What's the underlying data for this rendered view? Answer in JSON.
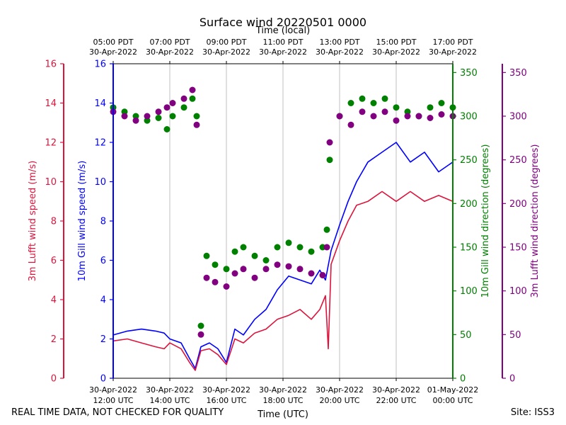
{
  "chart_data": {
    "type": "line",
    "title": "Surface wind 20220501 0000",
    "top_axis_label": "Time (local)",
    "xlabel": "Time (UTC)",
    "xlim_hours_utc": [
      12,
      24
    ],
    "bottom_ticks": [
      {
        "hour": 12,
        "line1": "30-Apr-2022",
        "line2": "12:00 UTC"
      },
      {
        "hour": 14,
        "line1": "30-Apr-2022",
        "line2": "14:00 UTC"
      },
      {
        "hour": 16,
        "line1": "30-Apr-2022",
        "line2": "16:00 UTC"
      },
      {
        "hour": 18,
        "line1": "30-Apr-2022",
        "line2": "18:00 UTC"
      },
      {
        "hour": 20,
        "line1": "30-Apr-2022",
        "line2": "20:00 UTC"
      },
      {
        "hour": 22,
        "line1": "30-Apr-2022",
        "line2": "22:00 UTC"
      },
      {
        "hour": 24,
        "line1": "01-May-2022",
        "line2": "00:00 UTC"
      }
    ],
    "top_ticks": [
      {
        "hour": 12,
        "line1": "05:00 PDT",
        "line2": "30-Apr-2022"
      },
      {
        "hour": 14,
        "line1": "07:00 PDT",
        "line2": "30-Apr-2022"
      },
      {
        "hour": 16,
        "line1": "09:00 PDT",
        "line2": "30-Apr-2022"
      },
      {
        "hour": 18,
        "line1": "11:00 PDT",
        "line2": "30-Apr-2022"
      },
      {
        "hour": 20,
        "line1": "13:00 PDT",
        "line2": "30-Apr-2022"
      },
      {
        "hour": 22,
        "line1": "15:00 PDT",
        "line2": "30-Apr-2022"
      },
      {
        "hour": 24,
        "line1": "17:00 PDT",
        "line2": "30-Apr-2022"
      }
    ],
    "axes": [
      {
        "name": "3m Lufft wind speed (m/s)",
        "color": "#dc143c",
        "ylim": [
          0,
          16
        ],
        "ticks": [
          0,
          2,
          4,
          6,
          8,
          10,
          12,
          14,
          16
        ]
      },
      {
        "name": "10m Gill wind speed (m/s)",
        "color": "#0000ff",
        "ylim": [
          0,
          16
        ],
        "ticks": [
          0,
          2,
          4,
          6,
          8,
          10,
          12,
          14,
          16
        ]
      },
      {
        "name": "10m Gill wind direction (degrees)",
        "color": "#008000",
        "ylim": [
          0,
          360
        ],
        "ticks": [
          0,
          50,
          100,
          150,
          200,
          250,
          300,
          350
        ]
      },
      {
        "name": "3m Lufft wind direction (degrees)",
        "color": "#800080",
        "ylim": [
          0,
          360
        ],
        "ticks": [
          0,
          50,
          100,
          150,
          200,
          250,
          300,
          350
        ]
      }
    ],
    "series": [
      {
        "name": "10m Gill wind speed",
        "kind": "line",
        "axis": 1,
        "color": "#0000ff",
        "x": [
          12.0,
          12.5,
          13.0,
          13.5,
          13.8,
          14.0,
          14.4,
          14.7,
          14.9,
          15.1,
          15.4,
          15.7,
          16.0,
          16.3,
          16.6,
          17.0,
          17.4,
          17.8,
          18.2,
          18.6,
          19.0,
          19.3,
          19.5,
          19.7,
          20.0,
          20.3,
          20.6,
          21.0,
          21.5,
          22.0,
          22.5,
          23.0,
          23.5,
          24.0
        ],
        "y": [
          2.2,
          2.4,
          2.5,
          2.4,
          2.3,
          2.0,
          1.8,
          1.0,
          0.5,
          1.6,
          1.8,
          1.5,
          0.8,
          2.5,
          2.2,
          3.0,
          3.5,
          4.5,
          5.2,
          5.0,
          4.8,
          5.5,
          5.0,
          6.5,
          7.8,
          9.0,
          10.0,
          11.0,
          11.5,
          12.0,
          11.0,
          11.5,
          10.5,
          11.0
        ]
      },
      {
        "name": "3m Lufft wind speed",
        "kind": "line",
        "axis": 0,
        "color": "#dc143c",
        "x": [
          12.0,
          12.5,
          13.0,
          13.5,
          13.8,
          14.0,
          14.4,
          14.7,
          14.9,
          15.1,
          15.4,
          15.7,
          16.0,
          16.3,
          16.6,
          17.0,
          17.4,
          17.8,
          18.2,
          18.6,
          19.0,
          19.3,
          19.5,
          19.6,
          19.7,
          20.0,
          20.3,
          20.6,
          21.0,
          21.5,
          22.0,
          22.5,
          23.0,
          23.5,
          24.0
        ],
        "y": [
          1.9,
          2.0,
          1.8,
          1.6,
          1.5,
          1.8,
          1.5,
          0.8,
          0.4,
          1.4,
          1.5,
          1.2,
          0.7,
          2.0,
          1.8,
          2.3,
          2.5,
          3.0,
          3.2,
          3.5,
          3.0,
          3.5,
          4.2,
          1.5,
          5.8,
          7.0,
          8.0,
          8.8,
          9.0,
          9.5,
          9.0,
          9.5,
          9.0,
          9.3,
          9.0
        ]
      },
      {
        "name": "10m Gill wind direction",
        "kind": "scatter",
        "axis": 2,
        "color": "#008000",
        "x": [
          12.0,
          12.4,
          12.8,
          13.2,
          13.6,
          13.9,
          14.1,
          14.5,
          14.8,
          14.95,
          15.1,
          15.3,
          15.6,
          16.0,
          16.3,
          16.6,
          17.0,
          17.4,
          17.8,
          18.2,
          18.6,
          19.0,
          19.4,
          19.55,
          19.65,
          20.0,
          20.4,
          20.8,
          21.2,
          21.6,
          22.0,
          22.4,
          22.8,
          23.2,
          23.6,
          24.0
        ],
        "y": [
          310,
          305,
          300,
          295,
          298,
          285,
          300,
          310,
          320,
          300,
          60,
          140,
          130,
          125,
          145,
          150,
          140,
          135,
          150,
          155,
          150,
          145,
          150,
          170,
          250,
          300,
          315,
          320,
          315,
          320,
          310,
          305,
          300,
          310,
          315,
          310
        ]
      },
      {
        "name": "3m Lufft wind direction",
        "kind": "scatter",
        "axis": 3,
        "color": "#800080",
        "x": [
          12.0,
          12.4,
          12.8,
          13.2,
          13.6,
          13.9,
          14.1,
          14.5,
          14.8,
          14.95,
          15.1,
          15.3,
          15.6,
          16.0,
          16.3,
          16.6,
          17.0,
          17.4,
          17.8,
          18.2,
          18.6,
          19.0,
          19.4,
          19.55,
          19.65,
          20.0,
          20.4,
          20.8,
          21.2,
          21.6,
          22.0,
          22.4,
          22.8,
          23.2,
          23.6,
          24.0
        ],
        "y": [
          305,
          300,
          295,
          300,
          305,
          310,
          315,
          320,
          330,
          290,
          50,
          115,
          110,
          105,
          120,
          125,
          115,
          125,
          130,
          128,
          125,
          120,
          118,
          150,
          270,
          300,
          290,
          305,
          300,
          305,
          295,
          300,
          300,
          298,
          302,
          300
        ]
      }
    ]
  },
  "footer": {
    "quality_note": "REAL TIME DATA, NOT CHECKED FOR QUALITY",
    "site": "Site: ISS3"
  }
}
